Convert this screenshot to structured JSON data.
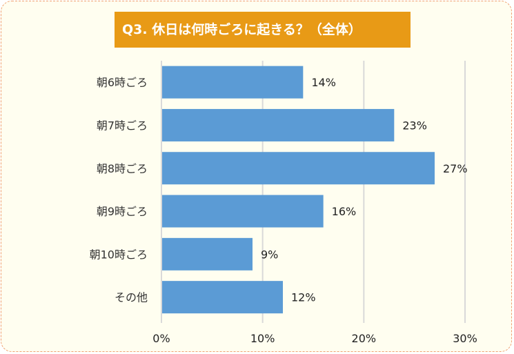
{
  "chart_data": {
    "type": "bar",
    "orientation": "horizontal",
    "title": "Q3. 休日は何時ごろに起きる？（全体）",
    "categories": [
      "朝6時ごろ",
      "朝7時ごろ",
      "朝8時ごろ",
      "朝9時ごろ",
      "朝10時ごろ",
      "その他"
    ],
    "values": [
      14,
      23,
      27,
      16,
      9,
      12
    ],
    "value_labels": [
      "14%",
      "23%",
      "27%",
      "16%",
      "9%",
      "12%"
    ],
    "xlim": [
      0,
      30
    ],
    "xticks": [
      0,
      10,
      20,
      30
    ],
    "xtick_labels": [
      "0%",
      "10%",
      "20%",
      "30%"
    ],
    "grid": true,
    "legend": "none",
    "colors": {
      "bar": "#5b9bd5",
      "title_bg": "#e89a16",
      "title_text": "#ffffff",
      "background": "#fffef0",
      "border": "#f0a070",
      "grid": "#d9d9d9"
    }
  }
}
